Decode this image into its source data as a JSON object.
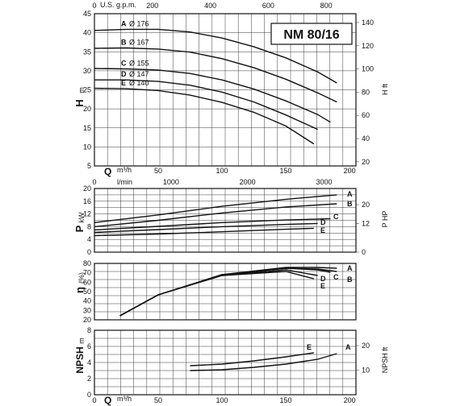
{
  "title": "NM 80/16",
  "chart_data": [
    {
      "type": "line",
      "name": "head",
      "ylabel": "H",
      "ylabel_unit": "m",
      "ylabel_right": "H ft",
      "top_axis_label": "U.S. g.p.m.",
      "top_ticks": [
        "0",
        "200",
        "400",
        "600",
        "800"
      ],
      "xlabel": "Q",
      "xlabel_unit": "m³/h",
      "xlabel2": "l/min",
      "x_ticks": [
        "0",
        "50",
        "100",
        "150",
        "200"
      ],
      "lmin_ticks": [
        "0",
        "1000",
        "2000",
        "3000"
      ],
      "y_ticks": [
        "5",
        "10",
        "15",
        "20",
        "25",
        "30",
        "35",
        "40",
        "45"
      ],
      "y_right_ticks": [
        "20",
        "40",
        "60",
        "80",
        "100",
        "120",
        "140"
      ],
      "xlim": [
        0,
        205
      ],
      "ylim": [
        5,
        45
      ],
      "series": [
        {
          "name": "A",
          "label": "Ø 176",
          "x": [
            0,
            25,
            50,
            75,
            100,
            125,
            150,
            175,
            190
          ],
          "y": [
            40.6,
            40.9,
            40.9,
            40.2,
            38.6,
            36.3,
            33.4,
            29.7,
            26.8
          ]
        },
        {
          "name": "B",
          "label": "Ø 167",
          "x": [
            0,
            25,
            50,
            75,
            100,
            125,
            150,
            175,
            190
          ],
          "y": [
            35.9,
            36.0,
            35.7,
            34.9,
            33.2,
            30.8,
            27.8,
            24.2,
            21.8
          ]
        },
        {
          "name": "C",
          "label": "Ø 155",
          "x": [
            0,
            25,
            50,
            75,
            100,
            125,
            150,
            175,
            185
          ],
          "y": [
            30.6,
            30.5,
            30.2,
            29.3,
            27.6,
            25.2,
            22.1,
            18.5,
            16.5
          ]
        },
        {
          "name": "D",
          "label": "Ø 147",
          "x": [
            0,
            25,
            50,
            75,
            100,
            125,
            150,
            175
          ],
          "y": [
            27.6,
            27.6,
            27.2,
            26.2,
            24.4,
            21.8,
            18.4,
            14.6
          ]
        },
        {
          "name": "E",
          "label": "Ø 140",
          "x": [
            0,
            25,
            50,
            75,
            100,
            125,
            150,
            172
          ],
          "y": [
            25.4,
            25.3,
            24.8,
            23.6,
            21.7,
            19.1,
            15.5,
            10.8
          ]
        }
      ]
    },
    {
      "type": "line",
      "name": "power",
      "ylabel": "P",
      "ylabel_unit": "kW",
      "ylabel_right": "P HP",
      "y_ticks": [
        "0",
        "4",
        "8",
        "12",
        "16",
        "20"
      ],
      "y_right_ticks": [
        "0",
        "12",
        "20"
      ],
      "xlim": [
        0,
        205
      ],
      "ylim": [
        0,
        20
      ],
      "series": [
        {
          "name": "A",
          "x": [
            0,
            50,
            100,
            150,
            190
          ],
          "y": [
            9.3,
            11.7,
            14.4,
            16.6,
            18.0
          ]
        },
        {
          "name": "B",
          "x": [
            0,
            50,
            100,
            150,
            190
          ],
          "y": [
            8.0,
            10.0,
            12.3,
            14.2,
            15.2
          ]
        },
        {
          "name": "C",
          "x": [
            0,
            50,
            100,
            150,
            185
          ],
          "y": [
            7.0,
            8.1,
            9.3,
            10.1,
            10.5
          ]
        },
        {
          "name": "D",
          "x": [
            0,
            50,
            100,
            150,
            175
          ],
          "y": [
            6.2,
            7.1,
            8.0,
            8.7,
            9.0
          ]
        },
        {
          "name": "E",
          "x": [
            0,
            50,
            100,
            150,
            172
          ],
          "y": [
            5.2,
            5.7,
            6.4,
            7.2,
            7.5
          ]
        }
      ]
    },
    {
      "type": "line",
      "name": "efficiency",
      "ylabel": "η",
      "ylabel_unit": "(%)",
      "y_ticks": [
        "20",
        "30",
        "40",
        "50",
        "60",
        "70",
        "80"
      ],
      "xlim": [
        0,
        205
      ],
      "ylim": [
        15,
        85
      ],
      "series": [
        {
          "name": "A",
          "x": [
            20,
            50,
            100,
            150,
            175,
            190
          ],
          "y": [
            20,
            46,
            71,
            80,
            80,
            79
          ]
        },
        {
          "name": "B",
          "x": [
            20,
            50,
            100,
            150,
            175,
            190
          ],
          "y": [
            20,
            46,
            71,
            79,
            78,
            75
          ]
        },
        {
          "name": "C",
          "x": [
            20,
            50,
            100,
            150,
            175,
            185
          ],
          "y": [
            20,
            46,
            71,
            79,
            77,
            74
          ]
        },
        {
          "name": "D",
          "x": [
            20,
            50,
            100,
            150,
            175
          ],
          "y": [
            20,
            46,
            70,
            77,
            70
          ]
        },
        {
          "name": "E",
          "x": [
            20,
            50,
            100,
            150,
            172
          ],
          "y": [
            20,
            46,
            70,
            75,
            66
          ]
        }
      ]
    },
    {
      "type": "line",
      "name": "npsh",
      "ylabel": "NPSH",
      "ylabel_unit": "m",
      "ylabel_right": "NPSH ft",
      "xlabel": "Q",
      "xlabel_unit": "m³/h",
      "x_ticks": [
        "0",
        "50",
        "100",
        "150",
        "200"
      ],
      "y_ticks": [
        "0",
        "2",
        "4",
        "6",
        "8"
      ],
      "y_right_ticks": [
        "10",
        "20"
      ],
      "xlim": [
        0,
        205
      ],
      "ylim": [
        0,
        8
      ],
      "series": [
        {
          "name": "A",
          "x": [
            75,
            100,
            125,
            150,
            175,
            190
          ],
          "y": [
            3.0,
            3.1,
            3.4,
            3.8,
            4.4,
            5.1
          ]
        },
        {
          "name": "E",
          "x": [
            75,
            100,
            125,
            150,
            172
          ],
          "y": [
            3.6,
            3.8,
            4.2,
            4.7,
            5.2
          ]
        }
      ]
    }
  ]
}
